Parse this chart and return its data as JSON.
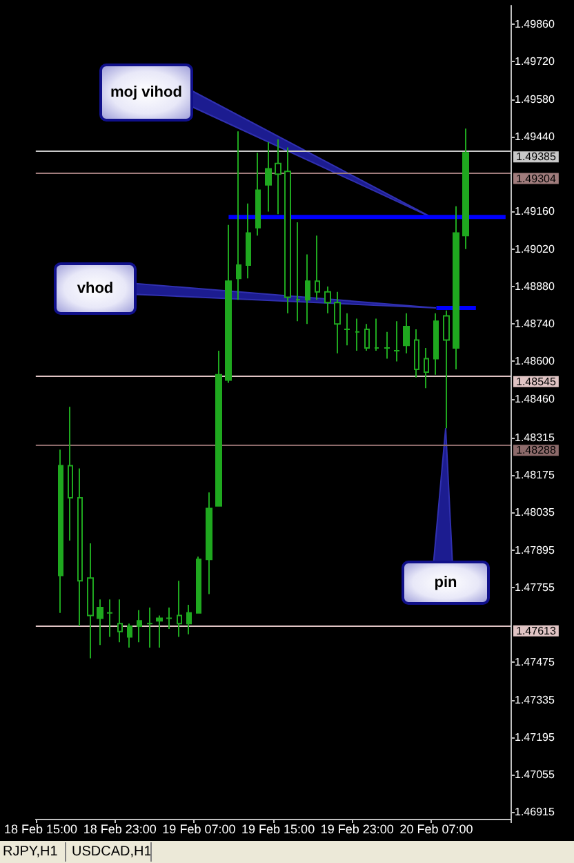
{
  "chart_data": {
    "type": "candlestick",
    "color": "#1fa81f",
    "categories": [
      "18 Feb 15:00",
      null,
      null,
      null,
      null,
      null,
      null,
      null,
      "18 Feb 23:00",
      null,
      null,
      null,
      null,
      null,
      null,
      null,
      "19 Feb 07:00",
      null,
      null,
      null,
      null,
      null,
      null,
      null,
      "19 Feb 15:00",
      null,
      null,
      null,
      null,
      null,
      null,
      null,
      "19 Feb 23:00",
      null,
      null,
      null,
      null,
      null,
      null,
      null,
      "20 Feb 07:00",
      null,
      null,
      null,
      null,
      null,
      null,
      null
    ],
    "ohlc": [
      null,
      null,
      [
        1.478,
        1.4827,
        1.4766,
        1.4821
      ],
      [
        1.4821,
        1.4843,
        1.4793,
        1.4809
      ],
      [
        1.4809,
        1.482,
        1.4761,
        1.4778
      ],
      [
        1.4779,
        1.4792,
        1.4749,
        1.4765
      ],
      [
        1.4764,
        1.4771,
        1.4754,
        1.4768
      ],
      [
        1.4766,
        1.4771,
        1.4757,
        1.4766
      ],
      [
        1.4762,
        1.4771,
        1.4755,
        1.4759
      ],
      [
        1.4757,
        1.4762,
        1.4753,
        1.4761
      ],
      [
        1.4761,
        1.4767,
        1.4755,
        1.4763
      ],
      [
        1.4762,
        1.4768,
        1.4753,
        1.4762
      ],
      [
        1.4763,
        1.4765,
        1.4753,
        1.4764
      ],
      [
        1.4764,
        1.4768,
        1.476,
        1.4764
      ],
      [
        1.4765,
        1.4778,
        1.4757,
        1.4762
      ],
      [
        1.4762,
        1.4769,
        1.4758,
        1.4766
      ],
      [
        1.4766,
        1.4787,
        1.4766,
        1.4786
      ],
      [
        1.4786,
        1.4811,
        1.4773,
        1.4805
      ],
      [
        1.4806,
        1.4864,
        1.4806,
        1.4855
      ],
      [
        1.4853,
        1.4911,
        1.4852,
        1.489
      ],
      [
        1.4891,
        1.4946,
        1.4883,
        1.4896
      ],
      [
        1.4896,
        1.4919,
        1.4891,
        1.4908
      ],
      [
        1.491,
        1.4938,
        1.4907,
        1.4924
      ],
      [
        1.4926,
        1.4942,
        1.4916,
        1.4932
      ],
      [
        1.4934,
        1.4943,
        1.4915,
        1.493
      ],
      [
        1.4931,
        1.494,
        1.4878,
        1.4884
      ],
      [
        1.4883,
        1.4912,
        1.4875,
        1.4883
      ],
      [
        1.4883,
        1.49,
        1.4874,
        1.489
      ],
      [
        1.489,
        1.4907,
        1.4883,
        1.4886
      ],
      [
        1.4886,
        1.4888,
        1.4878,
        1.4882
      ],
      [
        1.4882,
        1.4886,
        1.4863,
        1.4874
      ],
      [
        1.4872,
        1.4878,
        1.4866,
        1.4872
      ],
      [
        1.4871,
        1.4876,
        1.4864,
        1.4871
      ],
      [
        1.4872,
        1.4874,
        1.4864,
        1.4865
      ],
      [
        1.4865,
        1.4876,
        1.4864,
        1.4865
      ],
      [
        1.4865,
        1.4871,
        1.4861,
        1.4865
      ],
      [
        1.4864,
        1.4875,
        1.486,
        1.4864
      ],
      [
        1.4866,
        1.4878,
        1.4863,
        1.4873
      ],
      [
        1.4868,
        1.4872,
        1.4854,
        1.4857
      ],
      [
        1.4861,
        1.4865,
        1.485,
        1.4856
      ],
      [
        1.4861,
        1.4878,
        1.4855,
        1.4875
      ],
      [
        1.4877,
        1.4879,
        1.4835,
        1.4868
      ],
      [
        1.4865,
        1.4918,
        1.4857,
        1.4908
      ],
      [
        1.4907,
        1.4947,
        1.4902,
        1.4938
      ],
      null,
      null,
      null,
      null
    ],
    "series": [
      {
        "type": "line",
        "color": "#0000ff",
        "values": [
          null,
          null,
          null,
          null,
          null,
          null,
          null,
          null,
          null,
          null,
          null,
          null,
          null,
          null,
          null,
          null,
          null,
          null,
          null,
          1.4914,
          1.4914,
          1.4914,
          1.4914,
          1.4914,
          1.4914,
          1.4914,
          1.4914,
          1.4914,
          1.4914,
          1.4914,
          1.4914,
          1.4914,
          1.4914,
          1.4914,
          1.4914,
          1.4914,
          1.4914,
          1.4914,
          1.4914,
          1.4914,
          1.4914,
          1.4914,
          1.4914,
          1.4914,
          1.4914,
          1.4914,
          1.4914,
          1.4914
        ]
      },
      {
        "type": "line",
        "color": "#0000ff",
        "values": [
          null,
          null,
          null,
          null,
          null,
          null,
          null,
          null,
          null,
          null,
          null,
          null,
          null,
          null,
          null,
          null,
          null,
          null,
          null,
          null,
          null,
          null,
          null,
          null,
          null,
          null,
          null,
          null,
          null,
          null,
          null,
          null,
          null,
          null,
          null,
          null,
          null,
          null,
          null,
          null,
          1.488,
          1.488,
          1.488,
          1.488,
          1.488,
          null,
          null,
          null
        ]
      }
    ],
    "ylim": [
      1.4689,
      1.4993
    ],
    "yticks": [
      {
        "value": 1.4986,
        "label": "1.49860"
      },
      {
        "value": 1.4972,
        "label": "1.49720"
      },
      {
        "value": 1.4958,
        "label": "1.49580"
      },
      {
        "value": 1.4944,
        "label": "1.49440"
      },
      {
        "value": 1.4916,
        "label": "1.49160"
      },
      {
        "value": 1.4902,
        "label": "1.49020"
      },
      {
        "value": 1.4888,
        "label": "1.48880"
      },
      {
        "value": 1.4874,
        "label": "1.48740"
      },
      {
        "value": 1.486,
        "label": "1.48600"
      },
      {
        "value": 1.4846,
        "label": "1.48460"
      },
      {
        "value": 1.48315,
        "label": "1.48315"
      },
      {
        "value": 1.48175,
        "label": "1.48175"
      },
      {
        "value": 1.48035,
        "label": "1.48035"
      },
      {
        "value": 1.47895,
        "label": "1.47895"
      },
      {
        "value": 1.47755,
        "label": "1.47755"
      },
      {
        "value": 1.47475,
        "label": "1.47475"
      },
      {
        "value": 1.47335,
        "label": "1.47335"
      },
      {
        "value": 1.47195,
        "label": "1.47195"
      },
      {
        "value": 1.47055,
        "label": "1.47055"
      },
      {
        "value": 1.46915,
        "label": "1.46915"
      }
    ],
    "ref_lines": [
      {
        "axis": "y",
        "value": 1.49385,
        "label": "1.49385",
        "color": "#c8c8c8"
      },
      {
        "axis": "y",
        "value": 1.49304,
        "label": "1.49304",
        "color": "#a07c7c"
      },
      {
        "axis": "y",
        "value": 1.48545,
        "label": "1.48545",
        "color": "#e0c4c4"
      },
      {
        "axis": "y",
        "value": 1.48288,
        "label": "1.48288",
        "color": "#8c6a6a"
      },
      {
        "axis": "y",
        "value": 1.47613,
        "label": "1.47613",
        "color": "#e0c4c4"
      }
    ],
    "annotations": [
      "moj vihod",
      "vhod",
      "pin",
      "RJPY,H1",
      "USDCAD,H1"
    ]
  }
}
